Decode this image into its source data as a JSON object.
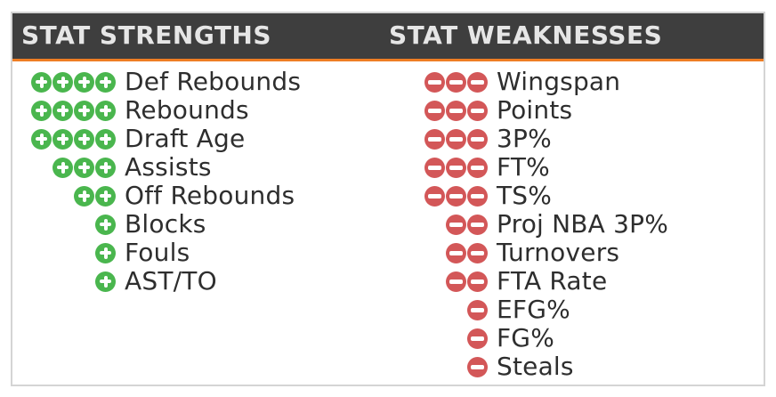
{
  "strengths": {
    "title": "STAT STRENGTHS",
    "items": [
      {
        "label": "Def Rebounds",
        "level": 4
      },
      {
        "label": "Rebounds",
        "level": 4
      },
      {
        "label": "Draft Age",
        "level": 4
      },
      {
        "label": "Assists",
        "level": 3
      },
      {
        "label": "Off Rebounds",
        "level": 2
      },
      {
        "label": "Blocks",
        "level": 1
      },
      {
        "label": "Fouls",
        "level": 1
      },
      {
        "label": "AST/TO",
        "level": 1
      }
    ]
  },
  "weaknesses": {
    "title": "STAT WEAKNESSES",
    "items": [
      {
        "label": "Wingspan",
        "level": 3
      },
      {
        "label": "Points",
        "level": 3
      },
      {
        "label": "3P%",
        "level": 3
      },
      {
        "label": "FT%",
        "level": 3
      },
      {
        "label": "TS%",
        "level": 3
      },
      {
        "label": "Proj NBA 3P%",
        "level": 2
      },
      {
        "label": "Turnovers",
        "level": 2
      },
      {
        "label": "FTA Rate",
        "level": 2
      },
      {
        "label": "EFG%",
        "level": 1
      },
      {
        "label": "FG%",
        "level": 1
      },
      {
        "label": "Steals",
        "level": 1
      }
    ]
  },
  "colors": {
    "header_bg": "#3e3e3e",
    "header_accent": "#ee7d24",
    "strength": "#4ab64e",
    "weakness": "#d35758"
  },
  "icons": {
    "strength": "plus-circle-icon",
    "weakness": "minus-circle-icon"
  }
}
